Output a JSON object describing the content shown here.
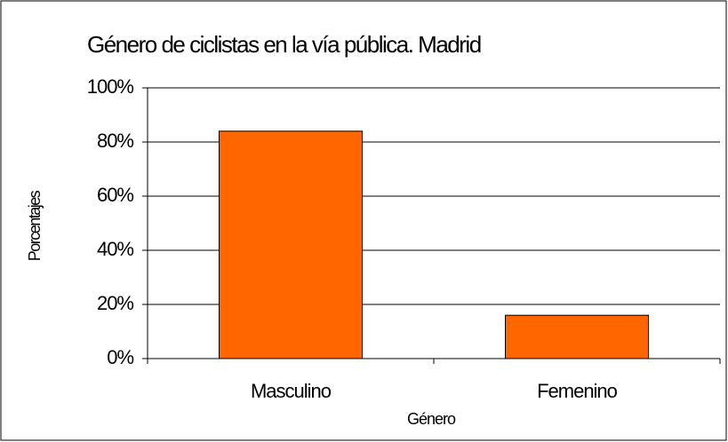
{
  "chart_data": {
    "type": "bar",
    "title": "Género de ciclistas en la vía pública. Madrid",
    "x_label": "Género",
    "y_label": "Porcentajes",
    "categories": [
      "Masculino",
      "Femenino"
    ],
    "values": [
      84,
      16
    ],
    "color": "#ff6600",
    "ylim": [
      0,
      100
    ],
    "yticks": [
      {
        "value": 0,
        "label": "0%"
      },
      {
        "value": 20,
        "label": "20%"
      },
      {
        "value": 40,
        "label": "40%"
      },
      {
        "value": 60,
        "label": "60%"
      },
      {
        "value": 80,
        "label": "80%"
      },
      {
        "value": 100,
        "label": "100%"
      }
    ],
    "grid": true
  }
}
